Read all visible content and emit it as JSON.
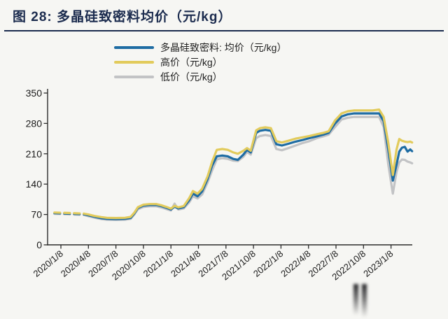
{
  "header": {
    "title": "图 28: 多晶硅致密料均价（元/kg）"
  },
  "colors": {
    "title_navy": "#1b2b4e",
    "avg_blue": "#1e6ca3",
    "high_gold": "#e2cb5c",
    "low_gray": "#c2c3c5",
    "axis": "#2b2b2b"
  },
  "chart_data": {
    "type": "line",
    "title": "图 28: 多晶硅致密料均价（元/kg）",
    "legend_position": "top",
    "grid": false,
    "x_unit": "months since 2020/1/8 (tick spacing = 3 months)",
    "x_axis": {
      "tick_labels": [
        "2020/1/8",
        "2020/4/8",
        "2020/7/8",
        "2020/10/8",
        "2021/1/8",
        "2021/4/8",
        "2021/7/8",
        "2021/10/8",
        "2022/1/8",
        "2022/4/8",
        "2022/7/8",
        "2022/10/8",
        "2023/1/8"
      ]
    },
    "y_axis": {
      "ticks": [
        0,
        70,
        140,
        210,
        280,
        350
      ],
      "range": [
        0,
        350
      ]
    },
    "dashed_until_month": 2.5,
    "x": [
      -0.7,
      0,
      0.7,
      1.4,
      2.1,
      2.5,
      3,
      3.7,
      4.4,
      5,
      6,
      7,
      7.6,
      8,
      8.4,
      9,
      9.7,
      10.4,
      11,
      11.5,
      12,
      12.4,
      12.8,
      13.4,
      14,
      14.4,
      14.9,
      15.4,
      16,
      16.5,
      17,
      17.6,
      18.2,
      18.8,
      19.3,
      19.9,
      20.3,
      20.7,
      21.3,
      21.7,
      22.3,
      22.9,
      23.5,
      24.1,
      24.8,
      25.6,
      26.4,
      27.1,
      27.9,
      28.6,
      29.2,
      29.9,
      30.6,
      31.3,
      32,
      33,
      34,
      34.7,
      35.2,
      35.7,
      36.2,
      36.6,
      36.9,
      37.2,
      37.5,
      37.8,
      38.1,
      38.3
    ],
    "series": [
      {
        "name": "多晶硅致密料: 均价（元/kg）",
        "color": "#1e6ca3",
        "values": [
          73,
          72.5,
          72,
          71.5,
          71,
          70.5,
          68,
          64.5,
          61.5,
          60,
          59.5,
          60,
          62,
          72,
          85,
          90.5,
          92,
          92,
          89,
          85.5,
          81.5,
          88,
          84,
          87,
          103,
          118,
          112,
          123,
          152,
          183,
          204,
          206,
          204,
          198,
          196,
          208,
          219,
          213,
          258,
          263,
          265,
          263,
          232,
          229,
          233,
          238,
          242,
          246,
          250,
          254,
          258,
          280,
          296,
          301,
          303,
          303,
          303,
          303,
          285,
          220,
          148,
          185,
          215,
          224,
          226,
          215,
          220,
          216
        ]
      },
      {
        "name": "高价（元/kg）",
        "color": "#e2cb5c",
        "values": [
          74.5,
          74,
          73.5,
          73,
          72.5,
          72,
          70,
          66.5,
          64,
          62.5,
          62,
          62.5,
          64.5,
          74,
          87,
          92.5,
          94,
          94,
          91,
          87.5,
          83.5,
          90,
          86.5,
          89.5,
          108,
          124,
          118,
          129,
          158,
          192,
          219,
          221,
          219,
          213,
          210,
          217,
          223,
          217,
          264,
          269,
          271,
          269,
          239,
          236,
          240,
          245,
          248,
          251,
          255,
          258,
          262,
          287,
          303,
          308,
          310,
          310,
          310,
          312,
          295,
          235,
          161,
          220,
          244,
          240,
          238,
          237,
          238,
          236
        ]
      },
      {
        "name": "低价（元/kg）",
        "color": "#c2c3c5",
        "values": [
          71.5,
          71,
          70.5,
          70,
          69.5,
          69,
          66,
          62.5,
          59.5,
          58,
          57.5,
          58,
          60,
          70,
          82,
          87.5,
          89,
          89,
          86,
          82.5,
          79,
          95,
          81.5,
          84,
          98,
          112,
          107,
          116,
          144,
          172,
          197,
          200,
          198,
          194,
          193,
          203,
          214,
          208,
          246,
          251,
          253,
          251,
          221,
          218,
          223,
          229,
          235,
          239,
          246,
          250,
          254,
          272,
          289,
          293,
          295,
          295,
          295,
          295,
          272,
          185,
          118,
          168,
          190,
          197,
          196,
          192,
          190,
          188
        ]
      }
    ]
  }
}
